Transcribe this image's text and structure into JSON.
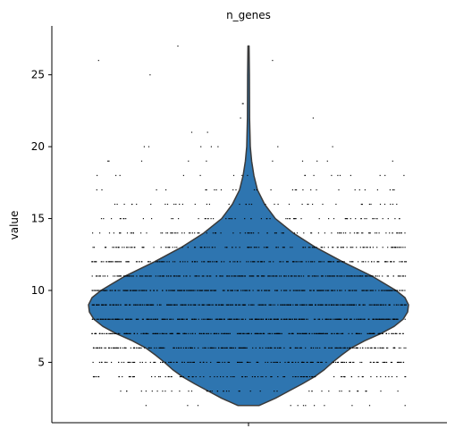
{
  "chart_data": {
    "type": "violin",
    "title": "n_genes",
    "ylabel": "value",
    "xlabel": "",
    "categories": [
      ""
    ],
    "ylim": [
      0.8,
      28.4
    ],
    "yticks": [
      5,
      10,
      15,
      20,
      25
    ],
    "color": "#2e75b0",
    "edge_color": "#3a3a3a",
    "value_range": [
      2,
      27
    ],
    "density_profile": [
      {
        "y": 2,
        "w": 0.12
      },
      {
        "y": 2.5,
        "w": 0.3
      },
      {
        "y": 3,
        "w": 0.45
      },
      {
        "y": 3.5,
        "w": 0.6
      },
      {
        "y": 4,
        "w": 0.74
      },
      {
        "y": 4.5,
        "w": 0.85
      },
      {
        "y": 5,
        "w": 0.94
      },
      {
        "y": 5.5,
        "w": 1.04
      },
      {
        "y": 6,
        "w": 1.15
      },
      {
        "y": 6.5,
        "w": 1.3
      },
      {
        "y": 7,
        "w": 1.48
      },
      {
        "y": 7.5,
        "w": 1.63
      },
      {
        "y": 8,
        "w": 1.73
      },
      {
        "y": 8.5,
        "w": 1.78
      },
      {
        "y": 9,
        "w": 1.79
      },
      {
        "y": 9.5,
        "w": 1.75
      },
      {
        "y": 10,
        "w": 1.65
      },
      {
        "y": 11,
        "w": 1.38
      },
      {
        "y": 12,
        "w": 1.05
      },
      {
        "y": 13,
        "w": 0.75
      },
      {
        "y": 14,
        "w": 0.5
      },
      {
        "y": 15,
        "w": 0.3
      },
      {
        "y": 16,
        "w": 0.18
      },
      {
        "y": 17,
        "w": 0.1
      },
      {
        "y": 18,
        "w": 0.06
      },
      {
        "y": 19,
        "w": 0.035
      },
      {
        "y": 20,
        "w": 0.02
      },
      {
        "y": 22,
        "w": 0.012
      },
      {
        "y": 25,
        "w": 0.01
      },
      {
        "y": 27,
        "w": 0.006
      }
    ],
    "strip_counts": [
      {
        "y": 2,
        "n": 12
      },
      {
        "y": 3,
        "n": 45
      },
      {
        "y": 4,
        "n": 110
      },
      {
        "y": 5,
        "n": 170
      },
      {
        "y": 6,
        "n": 220
      },
      {
        "y": 7,
        "n": 280
      },
      {
        "y": 8,
        "n": 320
      },
      {
        "y": 9,
        "n": 340
      },
      {
        "y": 10,
        "n": 310
      },
      {
        "y": 11,
        "n": 260
      },
      {
        "y": 12,
        "n": 200
      },
      {
        "y": 13,
        "n": 140
      },
      {
        "y": 14,
        "n": 95
      },
      {
        "y": 15,
        "n": 65
      },
      {
        "y": 16,
        "n": 42
      },
      {
        "y": 17,
        "n": 28
      },
      {
        "y": 18,
        "n": 18
      },
      {
        "y": 19,
        "n": 10
      },
      {
        "y": 20,
        "n": 7
      },
      {
        "y": 21,
        "n": 2
      },
      {
        "y": 22,
        "n": 2
      },
      {
        "y": 23,
        "n": 2
      },
      {
        "y": 25,
        "n": 1
      },
      {
        "y": 26,
        "n": 2
      },
      {
        "y": 27,
        "n": 1
      }
    ]
  }
}
